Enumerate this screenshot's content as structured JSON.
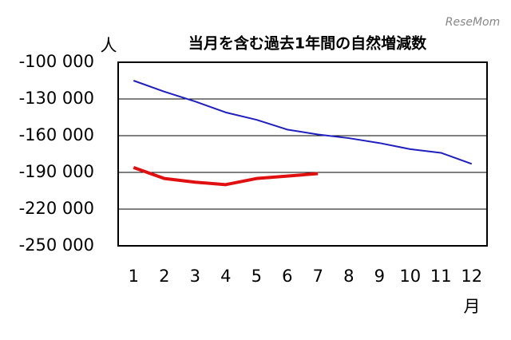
{
  "watermark": "ReseMom",
  "chart_data": {
    "type": "line",
    "title": "当月を含む過去1年間の自然増減数",
    "y_label": "人",
    "x_label": "月",
    "categories": [
      "1",
      "2",
      "3",
      "4",
      "5",
      "6",
      "7",
      "8",
      "9",
      "10",
      "11",
      "12"
    ],
    "series": [
      {
        "color": "#1f1fbf",
        "values": [
          -115000,
          -124000,
          -132000,
          -141000,
          -147000,
          -155000,
          -159000,
          -162000,
          -166000,
          -171000,
          -174000,
          -183000
        ]
      },
      {
        "color": "#e01010",
        "values": [
          -186000,
          -195000,
          -198000,
          -200000,
          -195000,
          -193000,
          -191000,
          null,
          null,
          null,
          null,
          null
        ]
      }
    ],
    "ylim": [
      -250000,
      -100000
    ],
    "yticks": [
      {
        "value": -100000,
        "label": "-100 000"
      },
      {
        "value": -130000,
        "label": "-130 000"
      },
      {
        "value": -160000,
        "label": "-160 000"
      },
      {
        "value": -190000,
        "label": "-190 000"
      },
      {
        "value": -220000,
        "label": "-220 000"
      },
      {
        "value": -250000,
        "label": "-250 000"
      }
    ],
    "grid": true
  }
}
